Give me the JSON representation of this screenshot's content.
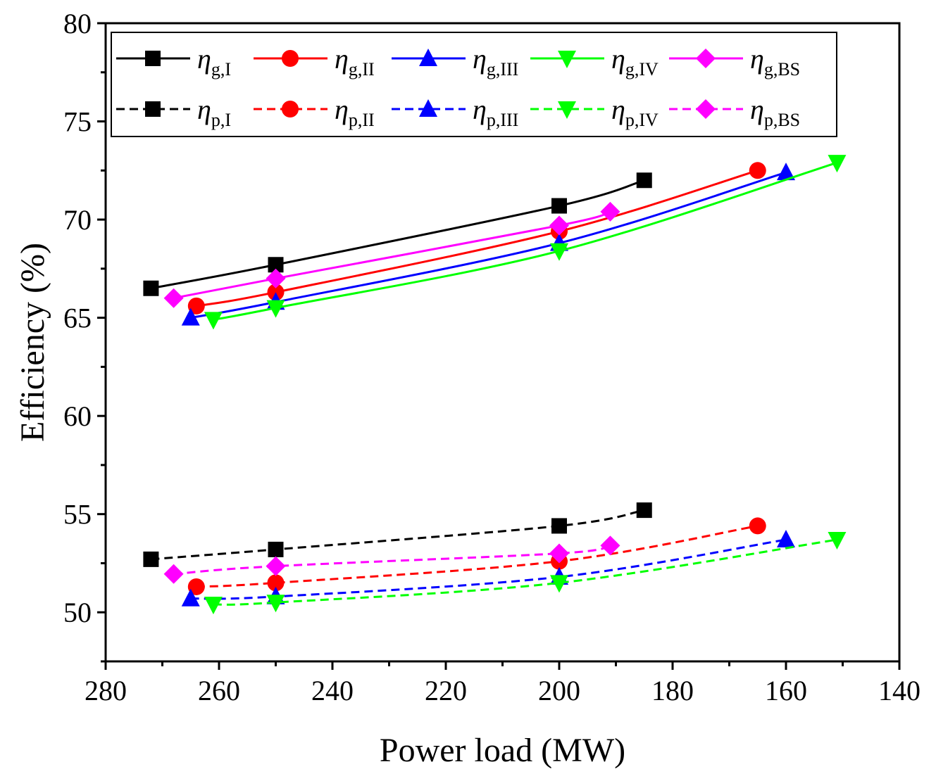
{
  "chart_data": {
    "type": "line",
    "xlabel": "Power load (MW)",
    "ylabel": "Efficiency (%)",
    "xlim": [
      280,
      140
    ],
    "ylim": [
      47.5,
      80
    ],
    "x_reversed": true,
    "x_ticks": [
      280,
      260,
      240,
      220,
      200,
      180,
      160,
      140
    ],
    "y_ticks": [
      50,
      55,
      60,
      65,
      70,
      75,
      80
    ],
    "grid": false,
    "legend": {
      "placement": "top",
      "columns": 5,
      "items": [
        {
          "series": 0,
          "main": "η",
          "sub": "g,I"
        },
        {
          "series": 1,
          "main": "η",
          "sub": "g,II"
        },
        {
          "series": 2,
          "main": "η",
          "sub": "g,III"
        },
        {
          "series": 3,
          "main": "η",
          "sub": "g,IV"
        },
        {
          "series": 4,
          "main": "η",
          "sub": "g,BS"
        },
        {
          "series": 5,
          "main": "η",
          "sub": "p,I"
        },
        {
          "series": 6,
          "main": "η",
          "sub": "p,II"
        },
        {
          "series": 7,
          "main": "η",
          "sub": "p,III"
        },
        {
          "series": 8,
          "main": "η",
          "sub": "p,IV"
        },
        {
          "series": 9,
          "main": "η",
          "sub": "p,BS"
        }
      ]
    },
    "series": [
      {
        "name": "ηg,I",
        "color": "#000000",
        "marker": "square",
        "dash": "solid",
        "x": [
          272,
          250,
          200,
          185
        ],
        "y": [
          66.5,
          67.7,
          70.7,
          72.0
        ]
      },
      {
        "name": "ηg,II",
        "color": "#ff0000",
        "marker": "circle",
        "dash": "solid",
        "x": [
          264,
          250,
          200,
          165
        ],
        "y": [
          65.6,
          66.3,
          69.4,
          72.5
        ]
      },
      {
        "name": "ηg,III",
        "color": "#0000ff",
        "marker": "triangle-up",
        "dash": "solid",
        "x": [
          265,
          250,
          200,
          160
        ],
        "y": [
          65.0,
          65.8,
          68.8,
          72.4
        ]
      },
      {
        "name": "ηg,IV",
        "color": "#00ff00",
        "marker": "triangle-down",
        "dash": "solid",
        "x": [
          261,
          250,
          200,
          151
        ],
        "y": [
          64.9,
          65.5,
          68.4,
          72.9
        ]
      },
      {
        "name": "ηg,BS",
        "color": "#ff00ff",
        "marker": "diamond",
        "dash": "solid",
        "x": [
          268,
          250,
          200,
          191
        ],
        "y": [
          66.0,
          67.0,
          69.7,
          70.4
        ]
      },
      {
        "name": "ηp,I",
        "color": "#000000",
        "marker": "square",
        "dash": "dashed",
        "x": [
          272,
          250,
          200,
          185
        ],
        "y": [
          52.7,
          53.2,
          54.4,
          55.2
        ]
      },
      {
        "name": "ηp,II",
        "color": "#ff0000",
        "marker": "circle",
        "dash": "dashed",
        "x": [
          264,
          250,
          200,
          165
        ],
        "y": [
          51.3,
          51.5,
          52.6,
          54.4
        ]
      },
      {
        "name": "ηp,III",
        "color": "#0000ff",
        "marker": "triangle-up",
        "dash": "dashed",
        "x": [
          265,
          250,
          200,
          160
        ],
        "y": [
          50.7,
          50.8,
          51.8,
          53.7
        ]
      },
      {
        "name": "ηp,IV",
        "color": "#00ff00",
        "marker": "triangle-down",
        "dash": "dashed",
        "x": [
          261,
          250,
          200,
          151
        ],
        "y": [
          50.4,
          50.5,
          51.5,
          53.7
        ]
      },
      {
        "name": "ηp,BS",
        "color": "#ff00ff",
        "marker": "diamond",
        "dash": "dashed",
        "x": [
          268,
          250,
          200,
          191
        ],
        "y": [
          51.95,
          52.35,
          53.0,
          53.4
        ]
      }
    ]
  }
}
